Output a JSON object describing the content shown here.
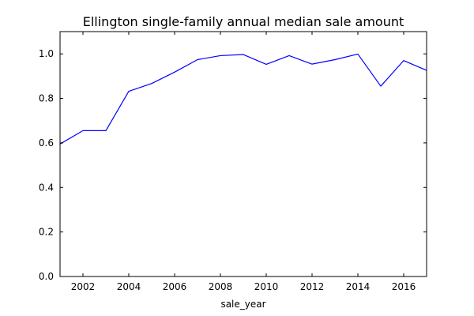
{
  "chart_data": {
    "type": "line",
    "title": "Ellington single-family annual median sale amount",
    "xlabel": "sale_year",
    "ylabel": "",
    "xlim": [
      2001,
      2017
    ],
    "ylim": [
      0.0,
      1.1
    ],
    "x_ticks": [
      2002,
      2004,
      2006,
      2008,
      2010,
      2012,
      2014,
      2016
    ],
    "x_tick_labels": [
      "2002",
      "2004",
      "2006",
      "2008",
      "2010",
      "2012",
      "2014",
      "2016"
    ],
    "y_ticks": [
      0.0,
      0.2,
      0.4,
      0.6,
      0.8,
      1.0
    ],
    "y_tick_labels": [
      "0.0",
      "0.2",
      "0.4",
      "0.6",
      "0.8",
      "1.0"
    ],
    "grid": false,
    "legend": "none",
    "line_color": "#0000ff",
    "series": [
      {
        "x": [
          2001,
          2002,
          2003,
          2004,
          2005,
          2006,
          2007,
          2008,
          2009,
          2010,
          2011,
          2012,
          2013,
          2014,
          2015,
          2016,
          2017
        ],
        "values": [
          0.595,
          0.655,
          0.655,
          0.832,
          0.867,
          0.918,
          0.974,
          0.992,
          0.997,
          0.953,
          0.992,
          0.954,
          0.974,
          0.999,
          0.855,
          0.97,
          0.926
        ]
      }
    ]
  }
}
